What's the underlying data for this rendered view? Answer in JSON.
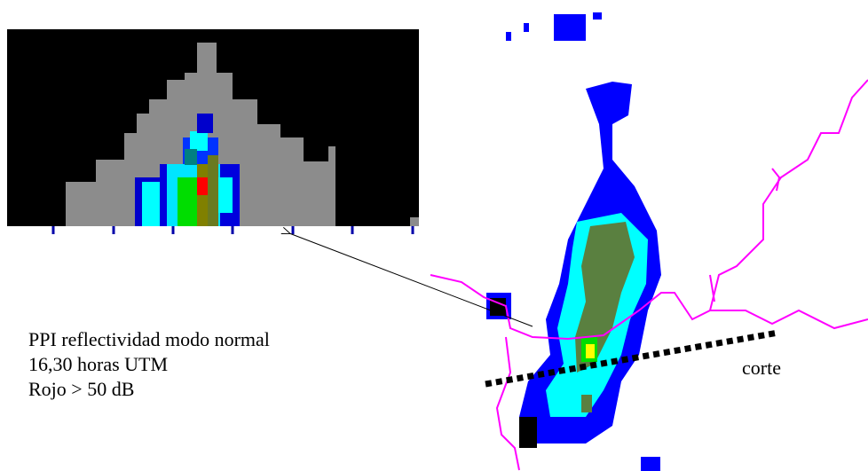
{
  "caption": {
    "lines": [
      "PPI reflectividad modo normal",
      "16,30 horas UTM",
      "Rojo > 50 dB"
    ]
  },
  "cut_label": "corte"
}
